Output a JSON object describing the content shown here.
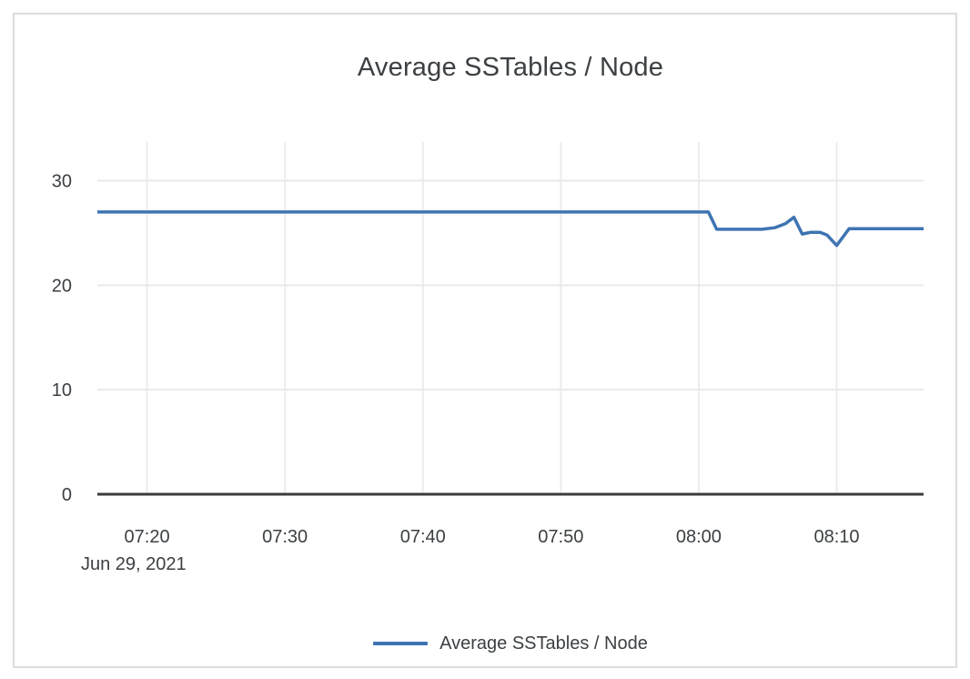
{
  "panel": {
    "background": "#ffffff",
    "border_color": "#dcdcdc"
  },
  "chart_data": {
    "type": "line",
    "title": "Average SSTables / Node",
    "date_label": "Jun 29, 2021",
    "x_unit": "minutes_after_07:00",
    "x_axis": {
      "lim": [
        16.4,
        76.3
      ],
      "ticks": [
        {
          "label": "07:20",
          "minutes": 20
        },
        {
          "label": "07:30",
          "minutes": 30
        },
        {
          "label": "07:40",
          "minutes": 40
        },
        {
          "label": "07:50",
          "minutes": 50
        },
        {
          "label": "08:00",
          "minutes": 60
        },
        {
          "label": "08:10",
          "minutes": 70
        }
      ]
    },
    "y_axis": {
      "lim": [
        0,
        33.7
      ],
      "ticks": [
        {
          "label": "0",
          "value": 0
        },
        {
          "label": "10",
          "value": 10
        },
        {
          "label": "20",
          "value": 20
        },
        {
          "label": "30",
          "value": 30
        }
      ]
    },
    "grid": true,
    "colors": {
      "grid_horizontal": "#e9e9e9",
      "grid_vertical": "#ececec",
      "axis": "#3a3a3a",
      "text": "#3c4043"
    },
    "legend": {
      "position": "bottom",
      "entries": [
        {
          "label": "Average SSTables / Node",
          "color": "#3e74b2"
        }
      ]
    },
    "series": [
      {
        "name": "Average SSTables / Node",
        "color": "#3e74b2",
        "points": [
          [
            16.4,
            27.0
          ],
          [
            60.7,
            27.0
          ],
          [
            61.3,
            25.35
          ],
          [
            64.6,
            25.35
          ],
          [
            65.5,
            25.5
          ],
          [
            66.3,
            25.9
          ],
          [
            66.9,
            26.5
          ],
          [
            67.5,
            24.9
          ],
          [
            68.1,
            25.05
          ],
          [
            68.8,
            25.05
          ],
          [
            69.3,
            24.8
          ],
          [
            70.0,
            23.8
          ],
          [
            70.9,
            25.4
          ],
          [
            76.3,
            25.4
          ]
        ]
      }
    ]
  }
}
